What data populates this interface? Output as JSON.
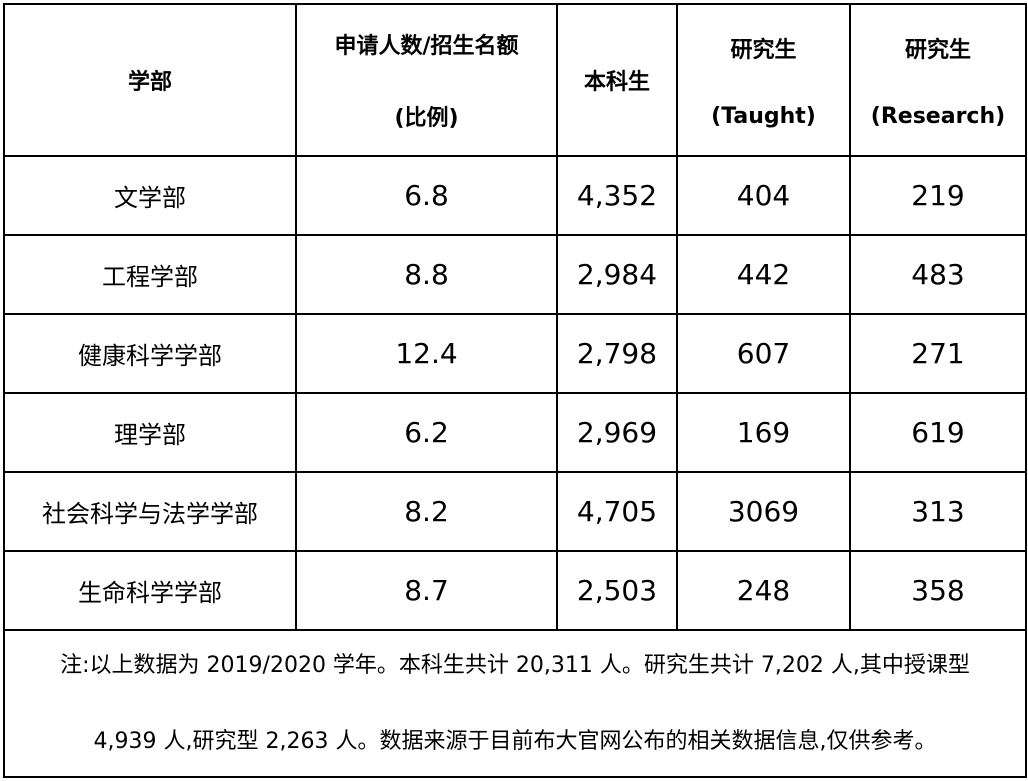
{
  "header": {
    "dept": "学部",
    "ratio_line1": "申请人数/招生名额",
    "ratio_line2": "(比例)",
    "undergrad": "本科生",
    "taught_line1": "研究生",
    "taught_line2": "(Taught)",
    "research_line1": "研究生",
    "research_line2": "(Research)"
  },
  "rows": [
    {
      "dept": "文学部",
      "ratio": "6.8",
      "undergrad": "4,352",
      "taught": "404",
      "research": "219"
    },
    {
      "dept": "工程学部",
      "ratio": "8.8",
      "undergrad": "2,984",
      "taught": "442",
      "research": "483"
    },
    {
      "dept": "健康科学学部",
      "ratio": "12.4",
      "undergrad": "2,798",
      "taught": "607",
      "research": "271"
    },
    {
      "dept": "理学部",
      "ratio": "6.2",
      "undergrad": "2,969",
      "taught": "169",
      "research": "619"
    },
    {
      "dept": "社会科学与法学学部",
      "ratio": "8.2",
      "undergrad": "4,705",
      "taught": "3069",
      "research": "313"
    },
    {
      "dept": "生命科学学部",
      "ratio": "8.7",
      "undergrad": "2,503",
      "taught": "248",
      "research": "358"
    }
  ],
  "note": {
    "line1": "注:以上数据为 2019/2020 学年。本科生共计 20,311 人。研究生共计 7,202 人,其中授课型",
    "line2": "4,939 人,研究型 2,263 人。数据来源于目前布大官网公布的相关数据信息,仅供参考。"
  }
}
